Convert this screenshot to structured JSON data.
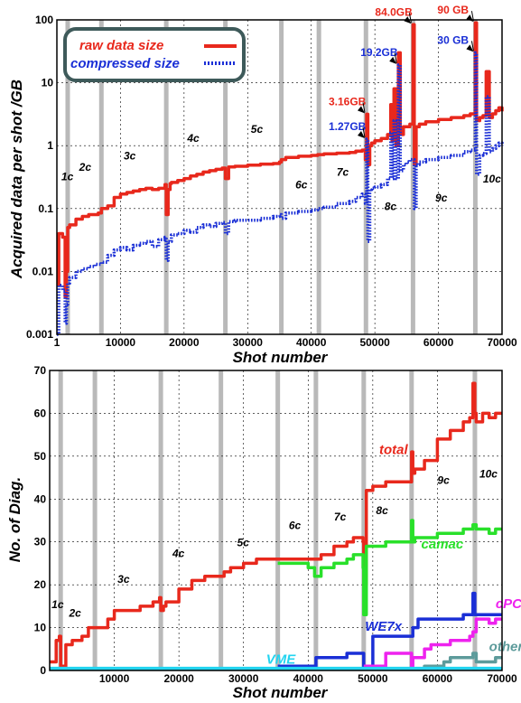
{
  "chart_data": [
    {
      "type": "line",
      "xlabel": "Shot number",
      "ylabel": "Acquired data per shot /GB",
      "xlim": [
        1,
        70000
      ],
      "ylim": [
        0.001,
        100
      ],
      "yscale": "log",
      "xticks": [
        1,
        10000,
        20000,
        30000,
        40000,
        50000,
        60000,
        70000
      ],
      "xtick_labels": [
        "1",
        "10000",
        "20000",
        "30000",
        "40000",
        "50000",
        "60000",
        "70000"
      ],
      "yticks": [
        0.001,
        0.01,
        0.1,
        1,
        10,
        100
      ],
      "ytick_labels": [
        "0.001",
        "0.01",
        "0.1",
        "1",
        "10",
        "100"
      ],
      "grid": true,
      "legend_position": "top-left",
      "campaign_boundaries": [
        1700,
        7000,
        17200,
        26500,
        35300,
        41200,
        48600,
        56000,
        65800
      ],
      "campaign_labels": [
        {
          "text": "1c",
          "x": 700,
          "y": 0.28
        },
        {
          "text": "2c",
          "x": 3500,
          "y": 0.4
        },
        {
          "text": "3c",
          "x": 10500,
          "y": 0.6
        },
        {
          "text": "4c",
          "x": 20500,
          "y": 1.15
        },
        {
          "text": "5c",
          "x": 30500,
          "y": 1.6
        },
        {
          "text": "6c",
          "x": 37500,
          "y": 0.21
        },
        {
          "text": "7c",
          "x": 44000,
          "y": 0.33
        },
        {
          "text": "8c",
          "x": 51500,
          "y": 0.095
        },
        {
          "text": "9c",
          "x": 59500,
          "y": 0.13
        },
        {
          "text": "10c",
          "x": 67000,
          "y": 0.26
        }
      ],
      "series": [
        {
          "name": "raw data size",
          "color": "#e8281c",
          "style": "solid",
          "x": [
            1,
            300,
            900,
            1300,
            1500,
            1700,
            2000,
            3000,
            4000,
            5000,
            6500,
            7000,
            8000,
            9000,
            10000,
            11000,
            12000,
            13000,
            14000,
            15000,
            16000,
            17000,
            17200,
            17500,
            17800,
            18000,
            19000,
            20000,
            21000,
            22000,
            23000,
            24000,
            25000,
            26000,
            26500,
            27000,
            28000,
            30000,
            32000,
            34000,
            35000,
            35300,
            36000,
            38000,
            40000,
            41000,
            42000,
            44000,
            46000,
            47000,
            48000,
            48500,
            48700,
            48900,
            49200,
            49500,
            50000,
            51000,
            52000,
            52500,
            52700,
            53000,
            53300,
            53700,
            54000,
            54500,
            55000,
            55500,
            56000,
            56200,
            56500,
            57000,
            58000,
            60000,
            62000,
            64000,
            65000,
            65500,
            65800,
            66000,
            66500,
            67000,
            67500,
            68000,
            68500,
            69000,
            69500,
            70000
          ],
          "y": [
            0.006,
            0.04,
            0.035,
            0.004,
            0.01,
            0.05,
            0.055,
            0.068,
            0.075,
            0.08,
            0.085,
            0.1,
            0.11,
            0.15,
            0.17,
            0.18,
            0.19,
            0.2,
            0.21,
            0.2,
            0.21,
            0.24,
            0.08,
            0.2,
            0.25,
            0.26,
            0.28,
            0.3,
            0.33,
            0.35,
            0.38,
            0.4,
            0.42,
            0.44,
            0.3,
            0.46,
            0.47,
            0.49,
            0.51,
            0.52,
            0.55,
            0.6,
            0.65,
            0.68,
            0.7,
            0.72,
            0.74,
            0.76,
            0.78,
            0.82,
            0.85,
            0.6,
            3.16,
            0.5,
            1.0,
            1.1,
            1.2,
            1.3,
            1.5,
            4.5,
            1.2,
            8.0,
            1.0,
            30,
            1.5,
            2.0,
            2.0,
            2.2,
            84.0,
            0.5,
            2.0,
            2.2,
            2.4,
            2.6,
            2.8,
            3.0,
            3.2,
            3.2,
            90,
            2.5,
            2.8,
            3.0,
            15,
            2.8,
            3.2,
            3.6,
            4.0,
            3.5
          ]
        },
        {
          "name": "compressed size",
          "color": "#1a2fd6",
          "style": "dotted",
          "x": [
            1,
            300,
            900,
            1300,
            1500,
            1700,
            2000,
            3000,
            4000,
            5000,
            6000,
            7000,
            8000,
            9000,
            10000,
            11000,
            12000,
            13000,
            14000,
            15000,
            16000,
            17000,
            17200,
            17500,
            18000,
            19000,
            20000,
            21000,
            22000,
            23000,
            24000,
            25000,
            26000,
            26500,
            27000,
            28000,
            30000,
            32000,
            34000,
            35000,
            35300,
            36000,
            38000,
            40000,
            41000,
            42000,
            44000,
            46000,
            47000,
            48000,
            48500,
            48700,
            48900,
            49200,
            49500,
            50000,
            51000,
            52000,
            52500,
            52700,
            53000,
            53300,
            53700,
            54000,
            54500,
            55000,
            55500,
            56000,
            56200,
            56500,
            57000,
            58000,
            60000,
            62000,
            64000,
            65000,
            65500,
            65800,
            66000,
            66500,
            67000,
            67500,
            68000,
            68500,
            69000,
            69500,
            70000
          ],
          "y": [
            0.001,
            0.006,
            0.005,
            0.0015,
            0.003,
            0.0065,
            0.008,
            0.01,
            0.011,
            0.012,
            0.013,
            0.014,
            0.018,
            0.022,
            0.024,
            0.022,
            0.026,
            0.028,
            0.03,
            0.025,
            0.032,
            0.035,
            0.015,
            0.03,
            0.038,
            0.04,
            0.045,
            0.042,
            0.05,
            0.055,
            0.052,
            0.058,
            0.06,
            0.04,
            0.062,
            0.065,
            0.065,
            0.07,
            0.075,
            0.08,
            0.07,
            0.085,
            0.09,
            0.095,
            0.1,
            0.105,
            0.12,
            0.13,
            0.15,
            0.17,
            0.12,
            1.27,
            0.03,
            0.2,
            0.21,
            0.22,
            0.24,
            0.3,
            1.6,
            0.3,
            2.5,
            0.3,
            19.2,
            0.4,
            0.5,
            0.55,
            0.6,
            0.6,
            0.1,
            0.5,
            0.55,
            0.6,
            0.65,
            0.7,
            0.8,
            0.85,
            0.85,
            30,
            0.35,
            0.7,
            0.75,
            6.0,
            0.8,
            0.9,
            1.0,
            1.1,
            1.0
          ]
        }
      ],
      "annotations": [
        {
          "text": "84.0GB",
          "x": 56000,
          "y": 84.0,
          "color": "#e8281c"
        },
        {
          "text": "90 GB",
          "x": 65800,
          "y": 90,
          "color": "#e8281c"
        },
        {
          "text": "19.2GB",
          "x": 53700,
          "y": 19.2,
          "color": "#1a2fd6"
        },
        {
          "text": "30 GB",
          "x": 65800,
          "y": 30,
          "color": "#1a2fd6"
        },
        {
          "text": "3.16GB",
          "x": 48700,
          "y": 3.16,
          "color": "#e8281c"
        },
        {
          "text": "1.27GB",
          "x": 48700,
          "y": 1.27,
          "color": "#1a2fd6"
        }
      ]
    },
    {
      "type": "line",
      "xlabel": "Shot number",
      "ylabel": "No. of Diag.",
      "xlim": [
        0,
        70000
      ],
      "ylim": [
        0,
        70
      ],
      "xticks": [
        10000,
        20000,
        30000,
        40000,
        50000,
        60000,
        70000
      ],
      "xtick_labels": [
        "10000",
        "20000",
        "30000",
        "40000",
        "50000",
        "60000",
        "70000"
      ],
      "yticks": [
        0,
        10,
        20,
        30,
        40,
        50,
        60,
        70
      ],
      "ytick_labels": [
        "0",
        "10",
        "20",
        "30",
        "40",
        "50",
        "60",
        "70"
      ],
      "grid": true,
      "campaign_boundaries": [
        1700,
        7000,
        17200,
        26500,
        35300,
        41200,
        48600,
        56000,
        65800
      ],
      "campaign_labels": [
        {
          "text": "1c",
          "x": 300,
          "y": 14.5
        },
        {
          "text": "2c",
          "x": 3000,
          "y": 12.5
        },
        {
          "text": "3c",
          "x": 10500,
          "y": 20.5
        },
        {
          "text": "4c",
          "x": 19000,
          "y": 26.5
        },
        {
          "text": "5c",
          "x": 29000,
          "y": 29
        },
        {
          "text": "6c",
          "x": 37000,
          "y": 33
        },
        {
          "text": "7c",
          "x": 44000,
          "y": 35
        },
        {
          "text": "8c",
          "x": 50500,
          "y": 36.5
        },
        {
          "text": "9c",
          "x": 60000,
          "y": 43.5
        },
        {
          "text": "10c",
          "x": 66500,
          "y": 45
        }
      ],
      "series": [
        {
          "name": "total",
          "color": "#e8281c",
          "x": [
            0,
            1000,
            1500,
            1700,
            2500,
            3500,
            5000,
            6000,
            7000,
            9000,
            10000,
            12000,
            14000,
            16000,
            17000,
            17200,
            17600,
            18000,
            20000,
            22000,
            24000,
            26000,
            27000,
            28000,
            30000,
            32000,
            34000,
            35300,
            38000,
            40000,
            42000,
            44000,
            46000,
            47000,
            48000,
            48500,
            48600,
            49000,
            50000,
            52000,
            54000,
            55500,
            56000,
            56200,
            56500,
            58000,
            60000,
            62000,
            64000,
            65000,
            65500,
            65800,
            66000,
            67000,
            68000,
            69000,
            70000
          ],
          "y": [
            2,
            7,
            8,
            1,
            6,
            7,
            8,
            10,
            10,
            12,
            14,
            14,
            15,
            16,
            17,
            14,
            15,
            16,
            19,
            21,
            22,
            22,
            23,
            24,
            25,
            26,
            26,
            26,
            26,
            26,
            27,
            29,
            30,
            31,
            31,
            30,
            20,
            42,
            43,
            44,
            44,
            44,
            51,
            46,
            47,
            49,
            54,
            56,
            58,
            59,
            67,
            60,
            58,
            60,
            59,
            60,
            60
          ]
        },
        {
          "name": "camac",
          "color": "#29e02a",
          "x": [
            35300,
            38000,
            40000,
            41000,
            42000,
            44000,
            46000,
            47000,
            48000,
            48500,
            48600,
            49000,
            50000,
            52000,
            54000,
            55500,
            56000,
            56200,
            56500,
            58000,
            60000,
            62000,
            64000,
            65000,
            65500,
            66000,
            67000,
            68000,
            69000,
            70000
          ],
          "y": [
            25,
            25,
            24,
            22,
            24,
            25,
            26,
            27,
            27,
            24,
            13,
            29,
            29,
            30,
            30,
            30,
            35,
            30,
            31,
            31,
            32,
            32,
            33,
            33,
            34,
            33,
            33,
            32,
            33,
            33
          ]
        },
        {
          "name": "WE7x",
          "color": "#1a2fd6",
          "x": [
            35300,
            40000,
            41200,
            42000,
            44000,
            46000,
            48000,
            48500,
            48600,
            50000,
            52000,
            54000,
            56000,
            56200,
            57000,
            60000,
            62000,
            64000,
            65000,
            65500,
            65800,
            66000,
            67000,
            70000
          ],
          "y": [
            1,
            1,
            3,
            3,
            3,
            4,
            4,
            4,
            1,
            8,
            8,
            8,
            8,
            10,
            12,
            12,
            12,
            13,
            13,
            18,
            13,
            13,
            13,
            13
          ]
        },
        {
          "name": "cPCI",
          "color": "#ee22ee",
          "x": [
            48600,
            50000,
            52000,
            54000,
            55500,
            56000,
            56200,
            57000,
            58000,
            59000,
            60000,
            62000,
            64000,
            65000,
            65500,
            66000,
            67000,
            68000,
            69000,
            70000
          ],
          "y": [
            1,
            1,
            4,
            4,
            4,
            1,
            3,
            3,
            5,
            6,
            6,
            7,
            7,
            8,
            9,
            12,
            12,
            11,
            12,
            12
          ]
        },
        {
          "name": "others",
          "color": "#5d9b9b",
          "x": [
            0,
            56000,
            58000,
            60000,
            61000,
            62000,
            64000,
            65000,
            65500,
            66000,
            67000,
            68000,
            69000,
            70000
          ],
          "y": [
            0.3,
            0.3,
            1,
            1,
            2,
            3,
            3,
            3,
            4,
            2,
            2,
            2,
            3,
            3
          ]
        },
        {
          "name": "VME",
          "color": "#22d4f0",
          "x": [
            0,
            70000
          ],
          "y": [
            0.5,
            0.5
          ]
        }
      ],
      "series_labels": [
        {
          "text": "total",
          "x": 51000,
          "y": 50.5,
          "color": "#e8281c"
        },
        {
          "text": "camac",
          "x": 57500,
          "y": 28.5,
          "color": "#29e02a"
        },
        {
          "text": "WE7x",
          "x": 48800,
          "y": 9.3,
          "color": "#1a2fd6"
        },
        {
          "text": "cPCI",
          "x": 69000,
          "y": 14.5,
          "color": "#ee22ee"
        },
        {
          "text": "others",
          "x": 68000,
          "y": 4.5,
          "color": "#5d9b9b"
        },
        {
          "text": "VME",
          "x": 33500,
          "y": 1.6,
          "color": "#22d4f0"
        }
      ]
    }
  ]
}
